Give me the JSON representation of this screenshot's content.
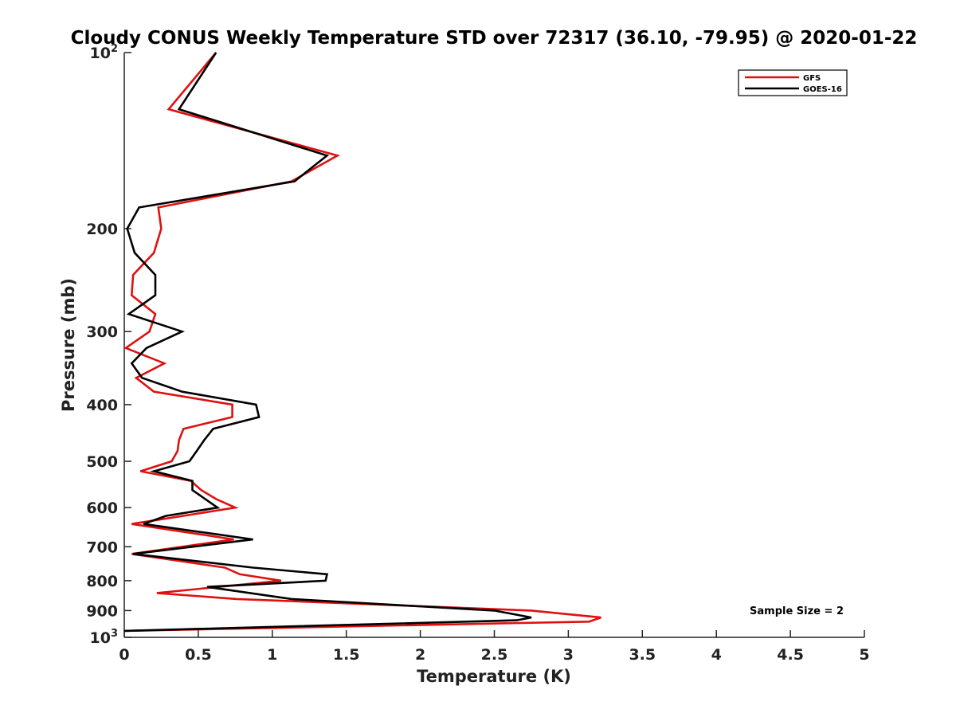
{
  "chart_data": {
    "type": "line",
    "orientation": "vertical-profile",
    "title": "Cloudy CONUS Weekly Temperature STD over 72317 (36.10, -79.95) @ 2020-01-22",
    "xlabel": "Temperature (K)",
    "ylabel": "Pressure (mb)",
    "xlim": [
      0,
      5
    ],
    "ylim": [
      100,
      1000
    ],
    "yscale": "log",
    "yreversed": true,
    "grid": false,
    "legend_position": "top-right",
    "x_ticks": [
      "0",
      "0.5",
      "1",
      "1.5",
      "2",
      "2.5",
      "3",
      "3.5",
      "4",
      "4.5",
      "5"
    ],
    "y_ticks": [
      {
        "value": 100,
        "base": "10",
        "exp": "2"
      },
      {
        "value": 200,
        "label": "200"
      },
      {
        "value": 300,
        "label": "300"
      },
      {
        "value": 400,
        "label": "400"
      },
      {
        "value": 500,
        "label": "500"
      },
      {
        "value": 600,
        "label": "600"
      },
      {
        "value": 700,
        "label": "700"
      },
      {
        "value": 800,
        "label": "800"
      },
      {
        "value": 900,
        "label": "900"
      },
      {
        "value": 1000,
        "base": "10",
        "exp": "3"
      }
    ],
    "series": [
      {
        "name": "GFS",
        "color": "#e01010",
        "points": [
          [
            0.62,
            100
          ],
          [
            0.3,
            125
          ],
          [
            1.44,
            150
          ],
          [
            1.13,
            166
          ],
          [
            0.23,
            184
          ],
          [
            0.25,
            200
          ],
          [
            0.2,
            220
          ],
          [
            0.06,
            240
          ],
          [
            0.05,
            260
          ],
          [
            0.21,
            280
          ],
          [
            0.17,
            300
          ],
          [
            0.01,
            320
          ],
          [
            0.27,
            340
          ],
          [
            0.08,
            360
          ],
          [
            0.2,
            380
          ],
          [
            0.73,
            400
          ],
          [
            0.73,
            420
          ],
          [
            0.4,
            440
          ],
          [
            0.37,
            460
          ],
          [
            0.36,
            480
          ],
          [
            0.32,
            500
          ],
          [
            0.11,
            520
          ],
          [
            0.45,
            540
          ],
          [
            0.52,
            560
          ],
          [
            0.62,
            580
          ],
          [
            0.75,
            600
          ],
          [
            0.05,
            640
          ],
          [
            0.74,
            680
          ],
          [
            0.05,
            720
          ],
          [
            0.68,
            760
          ],
          [
            0.78,
            780
          ],
          [
            1.06,
            800
          ],
          [
            0.22,
            840
          ],
          [
            0.76,
            860
          ],
          [
            2.75,
            900
          ],
          [
            3.22,
            925
          ],
          [
            3.14,
            940
          ],
          [
            0.0,
            975
          ]
        ]
      },
      {
        "name": "GOES-16",
        "color": "#000000",
        "points": [
          [
            0.62,
            100
          ],
          [
            0.37,
            125
          ],
          [
            1.37,
            150
          ],
          [
            1.15,
            166
          ],
          [
            0.1,
            184
          ],
          [
            0.02,
            200
          ],
          [
            0.07,
            220
          ],
          [
            0.21,
            240
          ],
          [
            0.21,
            260
          ],
          [
            0.03,
            280
          ],
          [
            0.39,
            300
          ],
          [
            0.15,
            320
          ],
          [
            0.05,
            340
          ],
          [
            0.12,
            360
          ],
          [
            0.39,
            380
          ],
          [
            0.89,
            400
          ],
          [
            0.91,
            420
          ],
          [
            0.6,
            440
          ],
          [
            0.54,
            460
          ],
          [
            0.49,
            480
          ],
          [
            0.44,
            500
          ],
          [
            0.2,
            520
          ],
          [
            0.46,
            540
          ],
          [
            0.46,
            560
          ],
          [
            0.63,
            600
          ],
          [
            0.28,
            620
          ],
          [
            0.13,
            640
          ],
          [
            0.87,
            680
          ],
          [
            0.06,
            720
          ],
          [
            0.87,
            760
          ],
          [
            1.37,
            780
          ],
          [
            1.36,
            800
          ],
          [
            0.56,
            820
          ],
          [
            1.13,
            860
          ],
          [
            2.5,
            900
          ],
          [
            2.75,
            925
          ],
          [
            2.65,
            935
          ],
          [
            0.0,
            975
          ]
        ]
      }
    ],
    "annotations": [
      {
        "text": "Sample Size = 2"
      }
    ]
  }
}
